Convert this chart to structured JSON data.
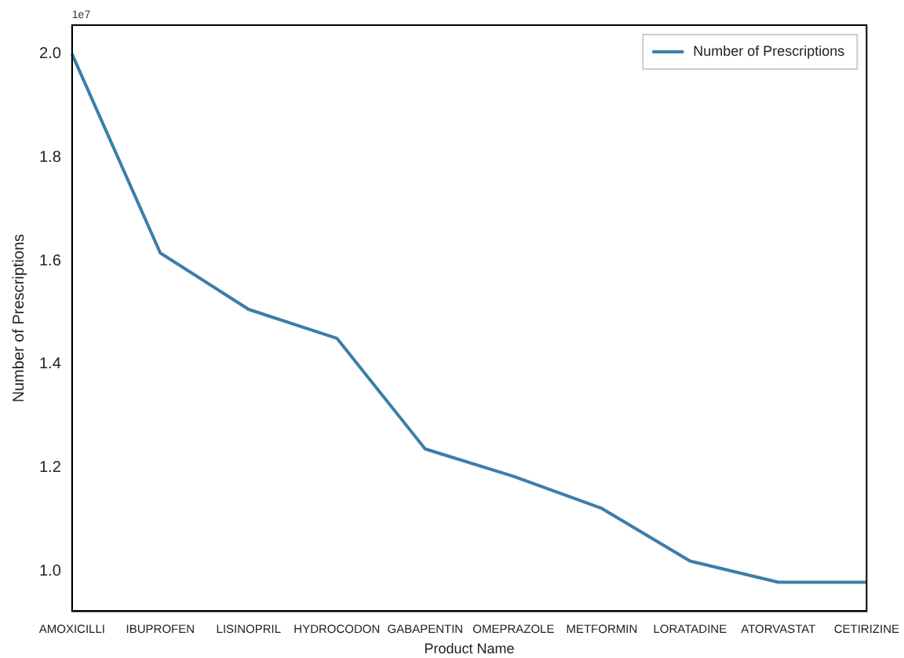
{
  "chart_data": {
    "type": "line",
    "xlabel": "Product Name",
    "ylabel": "Number of Prescriptions",
    "annotations": [
      "1e7"
    ],
    "categories": [
      "AMOXICILLI",
      "IBUPROFEN",
      "LISINOPRIL",
      "HYDROCODON",
      "GABAPENTIN",
      "OMEPRAZOLE",
      "METFORMIN",
      "LORATADINE",
      "ATORVASTAT",
      "CETIRIZINE"
    ],
    "series": [
      {
        "name": "Number of Prescriptions",
        "color": "#3b7ea8",
        "values": [
          2.0,
          1.615,
          1.506,
          1.45,
          1.236,
          1.183,
          1.121,
          1.019,
          0.978,
          0.978
        ]
      }
    ],
    "ylim": [
      0.922,
      2.056
    ],
    "yticks": [
      {
        "value": 1,
        "label": "1.0"
      },
      {
        "value": 1.2,
        "label": "1.2"
      },
      {
        "value": 1.4,
        "label": "1.4"
      },
      {
        "value": 1.6,
        "label": "1.6"
      },
      {
        "value": 1.8,
        "label": "1.8"
      },
      {
        "value": 2,
        "label": "2.0"
      }
    ],
    "grid": false,
    "legend": "top right",
    "marker": "none",
    "line_style": "solid"
  }
}
